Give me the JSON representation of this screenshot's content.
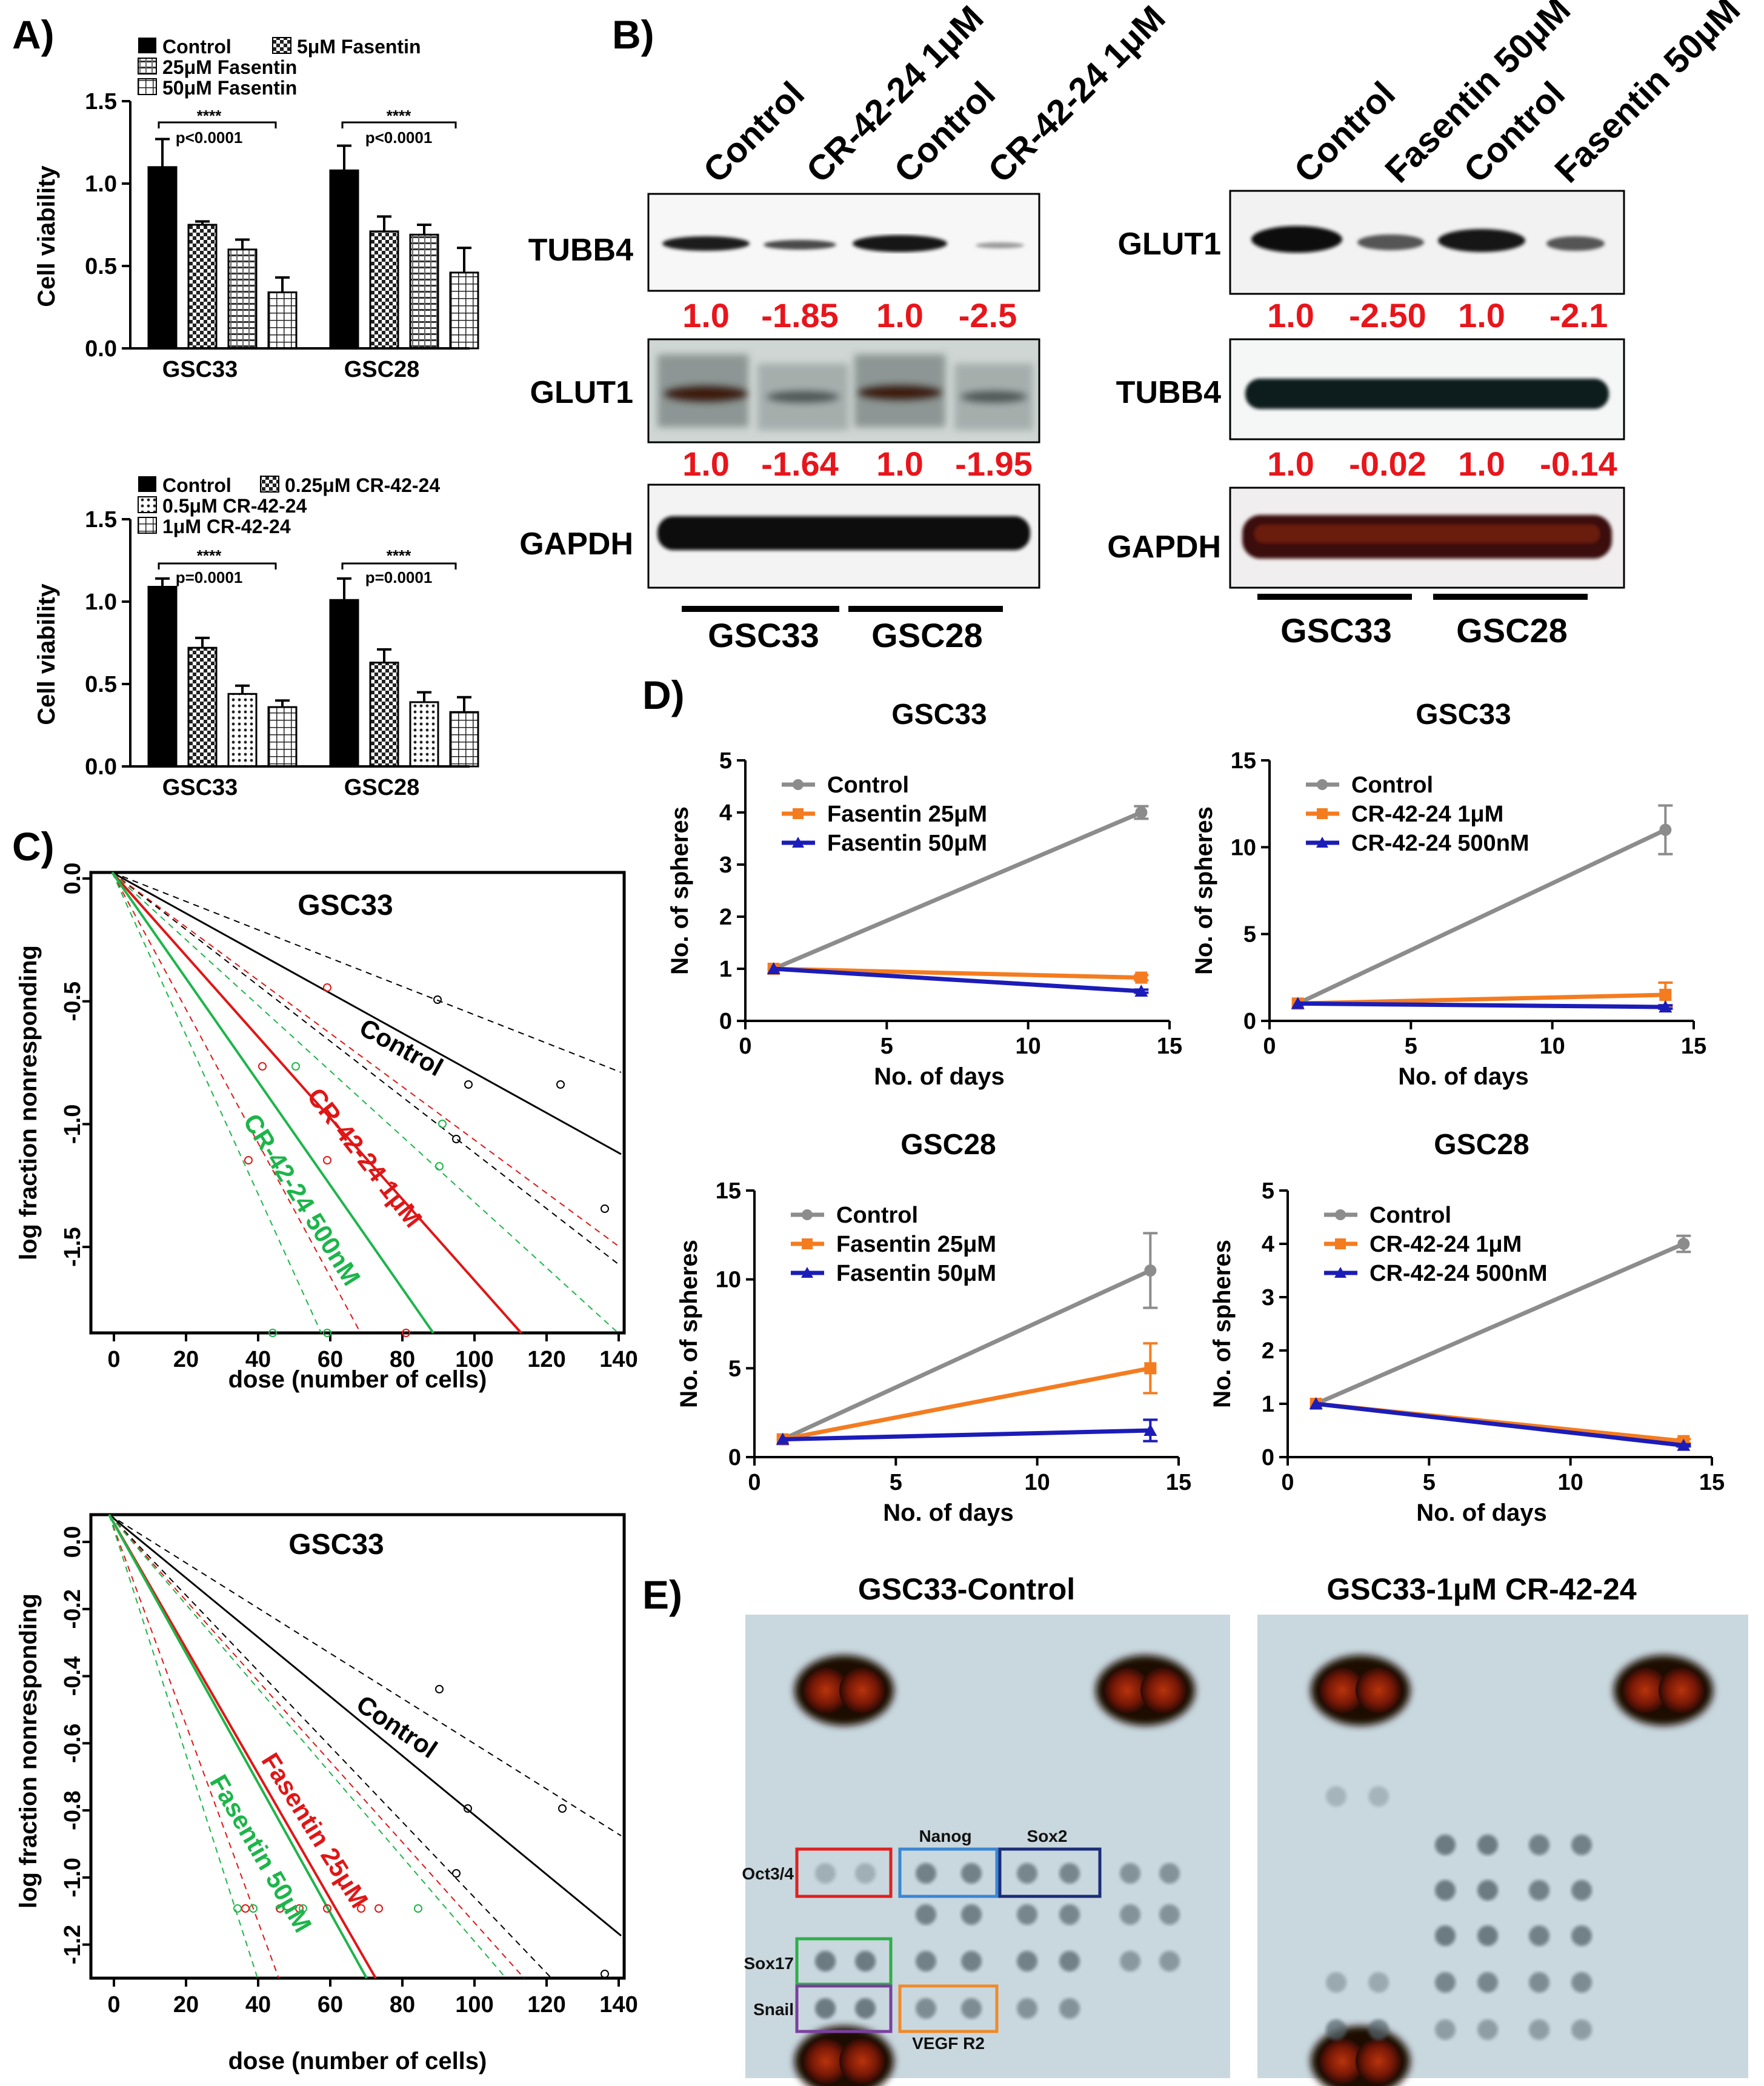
{
  "panels": {
    "A": "A)",
    "B": "B)",
    "C": "C)",
    "D": "D)",
    "E": "E)"
  },
  "panelA": {
    "y_label": "Cell viability",
    "y_ticks": [
      "0.0",
      "0.5",
      "1.0",
      "1.5"
    ],
    "ylim": [
      0,
      1.5
    ],
    "bar_colors": [
      "#000000",
      "#d8d8d8",
      "#c8c8c8",
      "#ffffff"
    ],
    "top": {
      "legend": [
        "Control",
        "5μM Fasentin",
        "25μM Fasentin",
        "50μM Fasentin"
      ],
      "categories": [
        "GSC33",
        "GSC28"
      ],
      "series": [
        {
          "name": "Control",
          "values": [
            1.1,
            1.08
          ],
          "errors": [
            0.17,
            0.15
          ]
        },
        {
          "name": "5μM Fasentin",
          "values": [
            0.75,
            0.71
          ],
          "errors": [
            0.02,
            0.09
          ]
        },
        {
          "name": "25μM Fasentin",
          "values": [
            0.6,
            0.69
          ],
          "errors": [
            0.06,
            0.06
          ]
        },
        {
          "name": "50μM Fasentin",
          "values": [
            0.34,
            0.46
          ],
          "errors": [
            0.09,
            0.15
          ]
        }
      ],
      "sig_stars": "****",
      "sig_p": [
        "p<0.0001",
        "p<0.0001"
      ]
    },
    "bottom": {
      "legend": [
        "Control",
        "0.25μM CR-42-24",
        "0.5μM CR-42-24",
        "1μM CR-42-24"
      ],
      "categories": [
        "GSC33",
        "GSC28"
      ],
      "series": [
        {
          "name": "Control",
          "values": [
            1.09,
            1.01
          ],
          "errors": [
            0.05,
            0.13
          ]
        },
        {
          "name": "0.25μM CR-42-24",
          "values": [
            0.72,
            0.63
          ],
          "errors": [
            0.06,
            0.08
          ]
        },
        {
          "name": "0.5μM CR-42-24",
          "values": [
            0.44,
            0.39
          ],
          "errors": [
            0.05,
            0.06
          ]
        },
        {
          "name": "1μM CR-42-24",
          "values": [
            0.36,
            0.33
          ],
          "errors": [
            0.04,
            0.09
          ]
        }
      ],
      "sig_stars": "****",
      "sig_p": [
        "p=0.0001",
        "p=0.0001"
      ]
    }
  },
  "panelB": {
    "left": {
      "columns": [
        "Control",
        "CR-42-24 1μM",
        "Control",
        "CR-42-24 1μM"
      ],
      "blots": [
        {
          "label": "TUBB4",
          "values": [
            "1.0",
            "-1.85",
            "1.0",
            "-2.5"
          ]
        },
        {
          "label": "GLUT1",
          "values": [
            "1.0",
            "-1.64",
            "1.0",
            "-1.95"
          ]
        },
        {
          "label": "GAPDH"
        }
      ],
      "groups": [
        "GSC33",
        "GSC28"
      ]
    },
    "right": {
      "columns": [
        "Control",
        "Fasentin 50μM",
        "Control",
        "Fasentin 50μM"
      ],
      "blots": [
        {
          "label": "GLUT1",
          "values": [
            "1.0",
            "-2.50",
            "1.0",
            "-2.1"
          ]
        },
        {
          "label": "TUBB4",
          "values": [
            "1.0",
            "-0.02",
            "1.0",
            "-0.14"
          ]
        },
        {
          "label": "GAPDH"
        }
      ],
      "groups": [
        "GSC33",
        "GSC28"
      ]
    }
  },
  "panelC": {
    "y_label": "log fraction nonresponding",
    "x_label": "dose (number of cells)",
    "x_ticks": [
      "0",
      "20",
      "40",
      "60",
      "80",
      "100",
      "120",
      "140"
    ],
    "top": {
      "title": "GSC33",
      "y_ticks": [
        "0.0",
        "-0.5",
        "-1.0",
        "-1.5"
      ],
      "line_labels": [
        "Control",
        "CR-42-24 1μM",
        "CR-42-24 500nM"
      ]
    },
    "bottom": {
      "title": "GSC33",
      "y_ticks": [
        "0.0",
        "-0.2",
        "-0.4",
        "-0.6",
        "-0.8",
        "-1.0",
        "-1.2"
      ],
      "line_labels": [
        "Control",
        "Fasentin 25μM",
        "Fasentin 50μM"
      ]
    }
  },
  "panelD": {
    "y_label": "No. of spheres",
    "x_label": "No. of days",
    "x_ticks": [
      "0",
      "5",
      "10",
      "15"
    ],
    "colors": [
      "#8c8c8c",
      "#f47c20",
      "#1c1cb8"
    ],
    "charts": [
      {
        "title": "GSC33",
        "y_ticks": [
          "0",
          "1",
          "2",
          "3",
          "4",
          "5"
        ],
        "series": [
          {
            "name": "Control",
            "x": [
              1,
              14
            ],
            "y": [
              1,
              4.0
            ],
            "err": [
              0,
              0.12
            ]
          },
          {
            "name": "Fasentin 25μM",
            "x": [
              1,
              14
            ],
            "y": [
              1,
              0.83
            ],
            "err": [
              0,
              0.05
            ]
          },
          {
            "name": "Fasentin 50μM",
            "x": [
              1,
              14
            ],
            "y": [
              1,
              0.57
            ],
            "err": [
              0,
              0.03
            ]
          }
        ]
      },
      {
        "title": "GSC33",
        "y_ticks": [
          "0",
          "5",
          "10",
          "15"
        ],
        "series": [
          {
            "name": "Control",
            "x": [
              1,
              14
            ],
            "y": [
              1,
              11.0
            ],
            "err": [
              0,
              1.4
            ]
          },
          {
            "name": "CR-42-24 1μM",
            "x": [
              1,
              14
            ],
            "y": [
              1,
              1.5
            ],
            "err": [
              0,
              0.7
            ]
          },
          {
            "name": "CR-42-24 500nM",
            "x": [
              1,
              14
            ],
            "y": [
              1,
              0.8
            ],
            "err": [
              0,
              0.1
            ]
          }
        ]
      },
      {
        "title": "GSC28",
        "y_ticks": [
          "0",
          "5",
          "10",
          "15"
        ],
        "series": [
          {
            "name": "Control",
            "x": [
              1,
              14
            ],
            "y": [
              1,
              10.5
            ],
            "err": [
              0,
              2.1
            ]
          },
          {
            "name": "Fasentin 25μM",
            "x": [
              1,
              14
            ],
            "y": [
              1,
              5.0
            ],
            "err": [
              0,
              1.4
            ]
          },
          {
            "name": "Fasentin 50μM",
            "x": [
              1,
              14
            ],
            "y": [
              1,
              1.5
            ],
            "err": [
              0,
              0.6
            ]
          }
        ]
      },
      {
        "title": "GSC28",
        "y_ticks": [
          "0",
          "1",
          "2",
          "3",
          "4",
          "5"
        ],
        "series": [
          {
            "name": "Control",
            "x": [
              1,
              14
            ],
            "y": [
              1,
              4.0
            ],
            "err": [
              0,
              0.15
            ]
          },
          {
            "name": "CR-42-24 1μM",
            "x": [
              1,
              14
            ],
            "y": [
              1,
              0.3
            ],
            "err": [
              0,
              0.04
            ]
          },
          {
            "name": "CR-42-24 500nM",
            "x": [
              1,
              14
            ],
            "y": [
              1,
              0.22
            ],
            "err": [
              0,
              0.02
            ]
          }
        ]
      }
    ]
  },
  "panelE": {
    "left_title": "GSC33-Control",
    "right_title": "GSC33-1μM CR-42-24",
    "labels": {
      "oct": "Oct3/4",
      "nanog": "Nanog",
      "sox2": "Sox2",
      "sox17": "Sox17",
      "snail": "Snail",
      "vegf": "VEGF R2"
    },
    "box_colors": {
      "oct": "#e02020",
      "nanog": "#3a86d4",
      "sox2": "#1a2d78",
      "sox17": "#2fae4a",
      "snail": "#7b3fa0",
      "vegf": "#f08a2a"
    }
  }
}
